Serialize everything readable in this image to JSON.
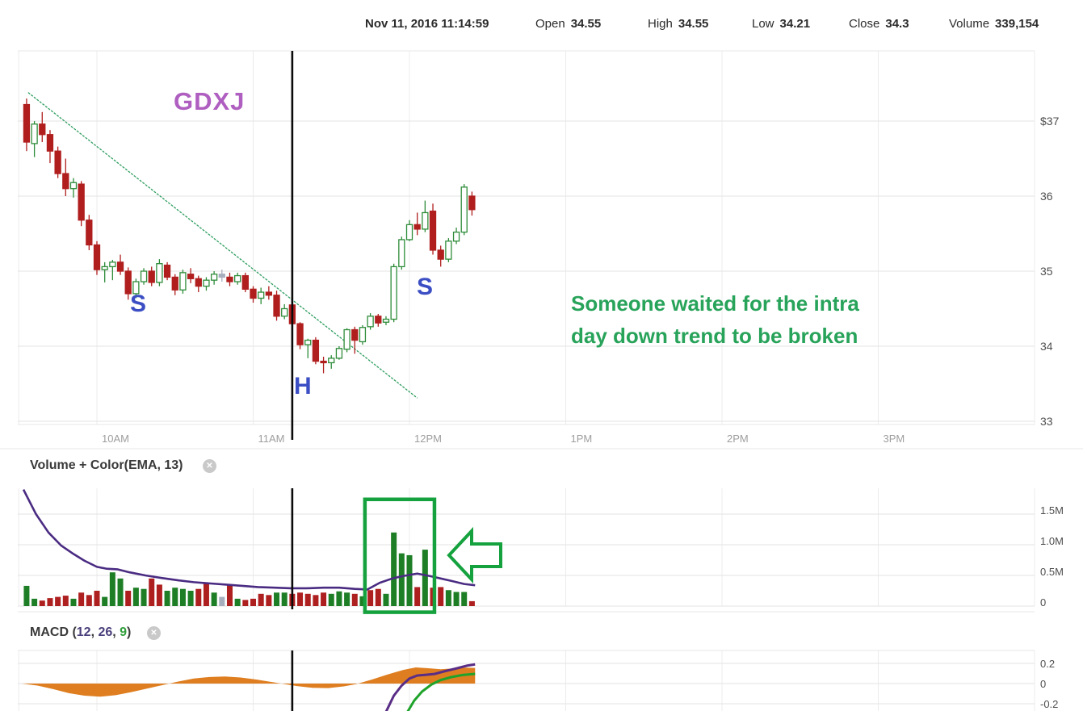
{
  "header": {
    "datetime": "Nov 11, 2016 11:14:59",
    "fields": [
      {
        "label": "Open",
        "value": "34.55"
      },
      {
        "label": "High",
        "value": "34.55"
      },
      {
        "label": "Low",
        "value": "34.21"
      },
      {
        "label": "Close",
        "value": "34.3"
      },
      {
        "label": "Volume",
        "value": "339,154"
      }
    ]
  },
  "symbol_label": "GDXJ",
  "annotations": {
    "left_shoulder": "S",
    "head": "H",
    "right_shoulder": "S",
    "note_line1": "Someone waited for the intra",
    "note_line2": "day down trend to be broken"
  },
  "panels": {
    "volume": {
      "title": "Volume + Color(EMA, 13)",
      "close_glyph": "✕"
    },
    "macd": {
      "title_prefix": "MACD (",
      "fast": "12",
      "sep1": ", ",
      "slow": "26",
      "sep2": ", ",
      "signal": "9",
      "title_suffix": ")",
      "close_glyph": "✕"
    }
  },
  "chart_data": {
    "type": "candlestick+volume+macd",
    "symbol": "GDXJ",
    "interval_minutes": 3,
    "candle_start_hour": 9.55,
    "interval_hours": 0.05,
    "current_time_hour": 11.25,
    "price_axis": {
      "labels": [
        "$37",
        "36",
        "35",
        "34",
        "33"
      ],
      "values": [
        37,
        36,
        35,
        34,
        33
      ]
    },
    "time_axis": {
      "labels": [
        "10AM",
        "11AM",
        "12PM",
        "1PM",
        "2PM",
        "3PM"
      ],
      "hours": [
        10,
        11,
        12,
        13,
        14,
        15
      ],
      "grid_hours": [
        9.5,
        10,
        11,
        12,
        13,
        14,
        15,
        16
      ]
    },
    "volume_axis": {
      "labels": [
        "1.5M",
        "1.0M",
        "0.5M",
        "0"
      ],
      "values": [
        1.5,
        1.0,
        0.5,
        0
      ]
    },
    "macd_axis": {
      "labels": [
        "0.2",
        "0",
        "-0.2"
      ],
      "values": [
        0.2,
        0,
        -0.2
      ]
    },
    "candles": [
      [
        37.22,
        37.3,
        36.6,
        36.72,
        0.33,
        "g"
      ],
      [
        36.7,
        37.0,
        36.52,
        36.96,
        0.12,
        "g"
      ],
      [
        36.96,
        37.12,
        36.72,
        36.82,
        0.09,
        "r"
      ],
      [
        36.82,
        36.88,
        36.44,
        36.6,
        0.13,
        "r"
      ],
      [
        36.6,
        36.66,
        36.24,
        36.3,
        0.15,
        "r"
      ],
      [
        36.3,
        36.5,
        36.0,
        36.1,
        0.17,
        "r"
      ],
      [
        36.1,
        36.24,
        35.98,
        36.18,
        0.12,
        "g"
      ],
      [
        36.16,
        36.2,
        35.6,
        35.68,
        0.22,
        "r"
      ],
      [
        35.68,
        35.75,
        35.28,
        35.35,
        0.18,
        "r"
      ],
      [
        35.35,
        35.4,
        34.95,
        35.02,
        0.25,
        "r"
      ],
      [
        35.02,
        35.12,
        34.85,
        35.06,
        0.15,
        "g"
      ],
      [
        35.06,
        35.15,
        34.88,
        35.12,
        0.55,
        "g"
      ],
      [
        35.12,
        35.22,
        34.95,
        35.0,
        0.45,
        "g"
      ],
      [
        35.0,
        35.05,
        34.62,
        34.7,
        0.25,
        "r"
      ],
      [
        34.7,
        34.9,
        34.64,
        34.86,
        0.3,
        "g"
      ],
      [
        34.86,
        35.04,
        34.82,
        35.0,
        0.28,
        "g"
      ],
      [
        35.0,
        35.06,
        34.8,
        34.85,
        0.45,
        "r"
      ],
      [
        34.85,
        35.16,
        34.8,
        35.1,
        0.35,
        "r"
      ],
      [
        35.08,
        35.12,
        34.88,
        34.92,
        0.25,
        "g"
      ],
      [
        34.92,
        34.96,
        34.68,
        34.75,
        0.3,
        "g"
      ],
      [
        34.75,
        35.02,
        34.7,
        34.98,
        0.28,
        "g"
      ],
      [
        34.96,
        35.04,
        34.84,
        34.9,
        0.25,
        "g"
      ],
      [
        34.9,
        34.94,
        34.72,
        34.8,
        0.28,
        "r"
      ],
      [
        34.8,
        34.92,
        34.74,
        34.88,
        0.38,
        "r"
      ],
      [
        34.88,
        35.0,
        34.82,
        34.96,
        0.22,
        "g"
      ],
      [
        34.96,
        35.02,
        34.86,
        34.92,
        0.15,
        "x"
      ],
      [
        34.92,
        34.98,
        34.8,
        34.86,
        0.35,
        "r"
      ],
      [
        34.86,
        34.98,
        34.82,
        34.94,
        0.12,
        "g"
      ],
      [
        34.94,
        34.98,
        34.72,
        34.76,
        0.1,
        "r"
      ],
      [
        34.76,
        34.8,
        34.58,
        34.64,
        0.12,
        "r"
      ],
      [
        34.64,
        34.78,
        34.56,
        34.72,
        0.2,
        "r"
      ],
      [
        34.72,
        34.8,
        34.62,
        34.68,
        0.18,
        "r"
      ],
      [
        34.68,
        34.74,
        34.34,
        34.4,
        0.22,
        "g"
      ],
      [
        34.4,
        34.56,
        34.36,
        34.5,
        0.22,
        "g"
      ],
      [
        34.55,
        34.55,
        34.21,
        34.3,
        0.2,
        "r"
      ],
      [
        34.3,
        34.32,
        33.96,
        34.02,
        0.22,
        "r"
      ],
      [
        34.02,
        34.1,
        33.84,
        34.08,
        0.2,
        "r"
      ],
      [
        34.08,
        34.12,
        33.76,
        33.8,
        0.18,
        "r"
      ],
      [
        33.8,
        33.86,
        33.64,
        33.78,
        0.22,
        "r"
      ],
      [
        33.78,
        33.88,
        33.7,
        33.84,
        0.2,
        "g"
      ],
      [
        33.84,
        34.0,
        33.82,
        33.97,
        0.24,
        "g"
      ],
      [
        33.96,
        34.24,
        33.92,
        34.22,
        0.22,
        "g"
      ],
      [
        34.22,
        34.26,
        33.9,
        34.08,
        0.2,
        "r"
      ],
      [
        34.06,
        34.28,
        34.02,
        34.25,
        0.16,
        "g"
      ],
      [
        34.26,
        34.44,
        34.22,
        34.4,
        0.26,
        "r"
      ],
      [
        34.4,
        34.43,
        34.26,
        34.31,
        0.28,
        "r"
      ],
      [
        34.32,
        34.4,
        34.28,
        34.36,
        0.2,
        "g"
      ],
      [
        34.36,
        35.1,
        34.32,
        35.06,
        1.2,
        "g"
      ],
      [
        35.06,
        35.46,
        35.02,
        35.42,
        0.86,
        "g"
      ],
      [
        35.42,
        35.68,
        35.4,
        35.62,
        0.83,
        "g"
      ],
      [
        35.62,
        35.78,
        35.48,
        35.56,
        0.31,
        "r"
      ],
      [
        35.56,
        35.94,
        35.52,
        35.78,
        0.92,
        "g"
      ],
      [
        35.8,
        35.9,
        35.22,
        35.28,
        0.3,
        "r"
      ],
      [
        35.28,
        35.34,
        35.06,
        35.16,
        0.31,
        "r"
      ],
      [
        35.16,
        35.44,
        35.12,
        35.4,
        0.26,
        "g"
      ],
      [
        35.4,
        35.58,
        35.36,
        35.52,
        0.23,
        "g"
      ],
      [
        35.52,
        36.16,
        35.48,
        36.12,
        0.23,
        "g"
      ],
      [
        36.0,
        36.06,
        35.74,
        35.82,
        0.08,
        "r"
      ]
    ],
    "trendline": {
      "x1_hour": 9.56,
      "y1_price": 37.38,
      "x2_hour": 12.05,
      "y2_price": 33.31
    },
    "volume_ema": [
      [
        9.53,
        1.9
      ],
      [
        9.61,
        1.5
      ],
      [
        9.69,
        1.2
      ],
      [
        9.77,
        0.99
      ],
      [
        9.85,
        0.85
      ],
      [
        9.92,
        0.74
      ],
      [
        10.0,
        0.64
      ],
      [
        10.06,
        0.61
      ],
      [
        10.13,
        0.6
      ],
      [
        10.21,
        0.55
      ],
      [
        10.31,
        0.5
      ],
      [
        10.41,
        0.46
      ],
      [
        10.52,
        0.42
      ],
      [
        10.62,
        0.39
      ],
      [
        10.72,
        0.37
      ],
      [
        10.83,
        0.35
      ],
      [
        10.93,
        0.33
      ],
      [
        11.03,
        0.31
      ],
      [
        11.14,
        0.3
      ],
      [
        11.24,
        0.29
      ],
      [
        11.34,
        0.29
      ],
      [
        11.45,
        0.3
      ],
      [
        11.55,
        0.3
      ],
      [
        11.65,
        0.28
      ],
      [
        11.73,
        0.27
      ],
      [
        11.81,
        0.38
      ],
      [
        11.89,
        0.45
      ],
      [
        11.96,
        0.49
      ],
      [
        12.05,
        0.53
      ],
      [
        12.13,
        0.49
      ],
      [
        12.2,
        0.45
      ],
      [
        12.27,
        0.41
      ],
      [
        12.35,
        0.36
      ],
      [
        12.42,
        0.34
      ]
    ],
    "macd_histogram": [
      [
        9.52,
        0.0
      ],
      [
        9.62,
        -0.02
      ],
      [
        9.72,
        -0.055
      ],
      [
        9.82,
        -0.095
      ],
      [
        9.92,
        -0.12
      ],
      [
        10.02,
        -0.13
      ],
      [
        10.12,
        -0.115
      ],
      [
        10.22,
        -0.085
      ],
      [
        10.32,
        -0.05
      ],
      [
        10.42,
        -0.015
      ],
      [
        10.52,
        0.02
      ],
      [
        10.62,
        0.05
      ],
      [
        10.72,
        0.065
      ],
      [
        10.82,
        0.07
      ],
      [
        10.92,
        0.06
      ],
      [
        11.02,
        0.04
      ],
      [
        11.12,
        0.015
      ],
      [
        11.18,
        0.0
      ],
      [
        11.28,
        -0.025
      ],
      [
        11.38,
        -0.042
      ],
      [
        11.48,
        -0.045
      ],
      [
        11.58,
        -0.028
      ],
      [
        11.66,
        -0.005
      ],
      [
        11.76,
        0.04
      ],
      [
        11.86,
        0.09
      ],
      [
        11.96,
        0.135
      ],
      [
        12.04,
        0.16
      ],
      [
        12.12,
        0.152
      ],
      [
        12.2,
        0.142
      ],
      [
        12.28,
        0.15
      ],
      [
        12.36,
        0.158
      ],
      [
        12.42,
        0.155
      ]
    ],
    "macd_line": [
      [
        11.85,
        -0.28
      ],
      [
        11.9,
        -0.12
      ],
      [
        11.95,
        -0.02
      ],
      [
        12.0,
        0.05
      ],
      [
        12.05,
        0.08
      ],
      [
        12.1,
        0.086
      ],
      [
        12.16,
        0.095
      ],
      [
        12.22,
        0.12
      ],
      [
        12.3,
        0.15
      ],
      [
        12.37,
        0.178
      ],
      [
        12.42,
        0.19
      ]
    ],
    "macd_signal": [
      [
        11.98,
        -0.3
      ],
      [
        12.03,
        -0.17
      ],
      [
        12.08,
        -0.08
      ],
      [
        12.14,
        -0.01
      ],
      [
        12.2,
        0.035
      ],
      [
        12.27,
        0.065
      ],
      [
        12.34,
        0.085
      ],
      [
        12.42,
        0.096
      ]
    ],
    "highlight_box": {
      "x1_hour": 11.715,
      "x2_hour": 12.16,
      "top_m": 1.74,
      "bottom_m": -0.1
    },
    "arrow_points": [
      [
        556,
        688
      ],
      [
        584,
        658
      ],
      [
        584,
        674
      ],
      [
        620,
        674
      ],
      [
        620,
        702
      ],
      [
        584,
        702
      ],
      [
        584,
        718
      ]
    ],
    "colors": {
      "up": "#2E8C39",
      "down": "#B01E1E",
      "neutral": "#A7AEBE",
      "vol_up": "#1E7E26",
      "vol_down": "#AE1F1F",
      "ema": "#4A2B82",
      "macd_area": "#DE7E20",
      "macd_line": "#5A2D86",
      "macd_signal": "#1FA32B",
      "trendline": "#2F9E60",
      "highlight": "#15A23E",
      "annotation_green": "#28A35A",
      "annotation_blue": "#3B4EC4",
      "symbol_purple": "#AF5FC0",
      "macd_title_num": "#4A3F7A",
      "macd_title_sig": "#2E9E3A",
      "current_time_line": "#0a0a0a"
    }
  }
}
